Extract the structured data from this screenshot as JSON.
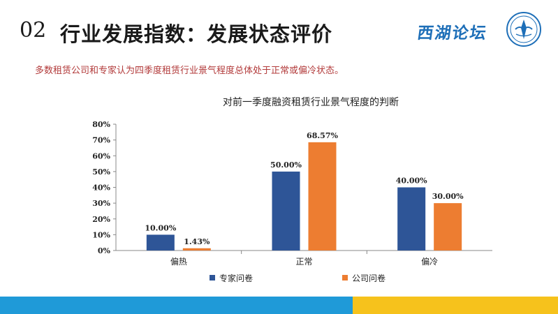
{
  "header": {
    "number": "02",
    "title": "行业发展指数：发展状态评价",
    "brand": "西湖论坛"
  },
  "subtitle": "多数租赁公司和专家认为四季度租赁行业景气程度总体处于正常或偏冷状态。",
  "colors": {
    "series_expert": "#2e5597",
    "series_company": "#ed7d31",
    "brand": "#1e6fb8",
    "bar_blue": "#1f9ad8",
    "bar_yellow": "#f6c21c",
    "subtitle": "#b23a3a"
  },
  "chart_data": {
    "type": "bar",
    "title": "对前一季度融资租赁行业景气程度的判断",
    "categories": [
      "偏热",
      "正常",
      "偏冷"
    ],
    "series": [
      {
        "name": "专家问卷",
        "values": [
          10.0,
          50.0,
          40.0
        ],
        "labels": [
          "10.00%",
          "50.00%",
          "40.00%"
        ]
      },
      {
        "name": "公司问卷",
        "values": [
          1.43,
          68.57,
          30.0
        ],
        "labels": [
          "1.43%",
          "68.57%",
          "30.00%"
        ]
      }
    ],
    "ylim": [
      0,
      80
    ],
    "yticks": [
      "0%",
      "10%",
      "20%",
      "30%",
      "40%",
      "50%",
      "60%",
      "70%",
      "80%"
    ],
    "legend": "bottom",
    "grid": false
  }
}
